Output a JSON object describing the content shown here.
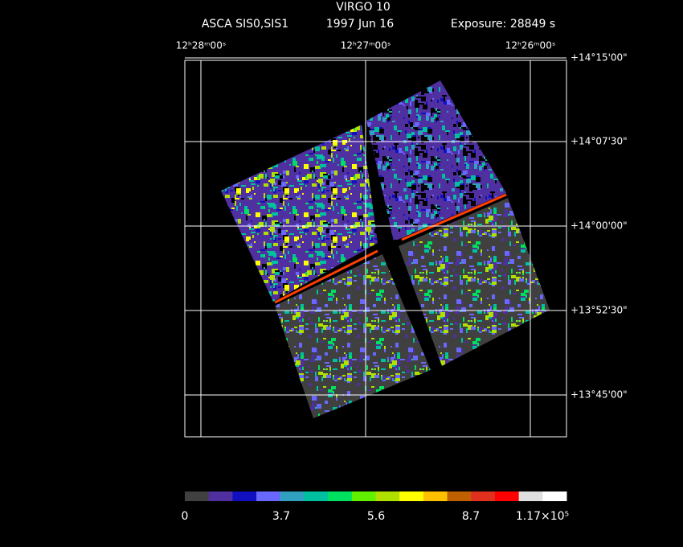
{
  "header": {
    "title": "VIRGO 10",
    "instrument": "ASCA SIS0,SIS1",
    "date": "1997 Jun 16",
    "exposure": "Exposure: 28849 s"
  },
  "ra_labels": [
    "12ʰ28ᵐ00ˢ",
    "12ʰ27ᵐ00ˢ",
    "12ʰ26ᵐ00ˢ"
  ],
  "dec_labels": [
    "+14°15'00\"",
    "+14°07'30\"",
    "+14°00'00\"",
    "+13°52'30\"",
    "+13°45'00\""
  ],
  "colorbar": {
    "colors": [
      "#404040",
      "#5030a0",
      "#1010c0",
      "#6868ff",
      "#30a0c0",
      "#00c0a0",
      "#00e060",
      "#60f000",
      "#b0e000",
      "#ffff00",
      "#ffc000",
      "#c06000",
      "#e03020",
      "#ff0000",
      "#e0e0e0",
      "#ffffff"
    ],
    "labels": [
      "0",
      "3.7",
      "5.6",
      "8.7",
      "1.17×10⁵"
    ]
  }
}
